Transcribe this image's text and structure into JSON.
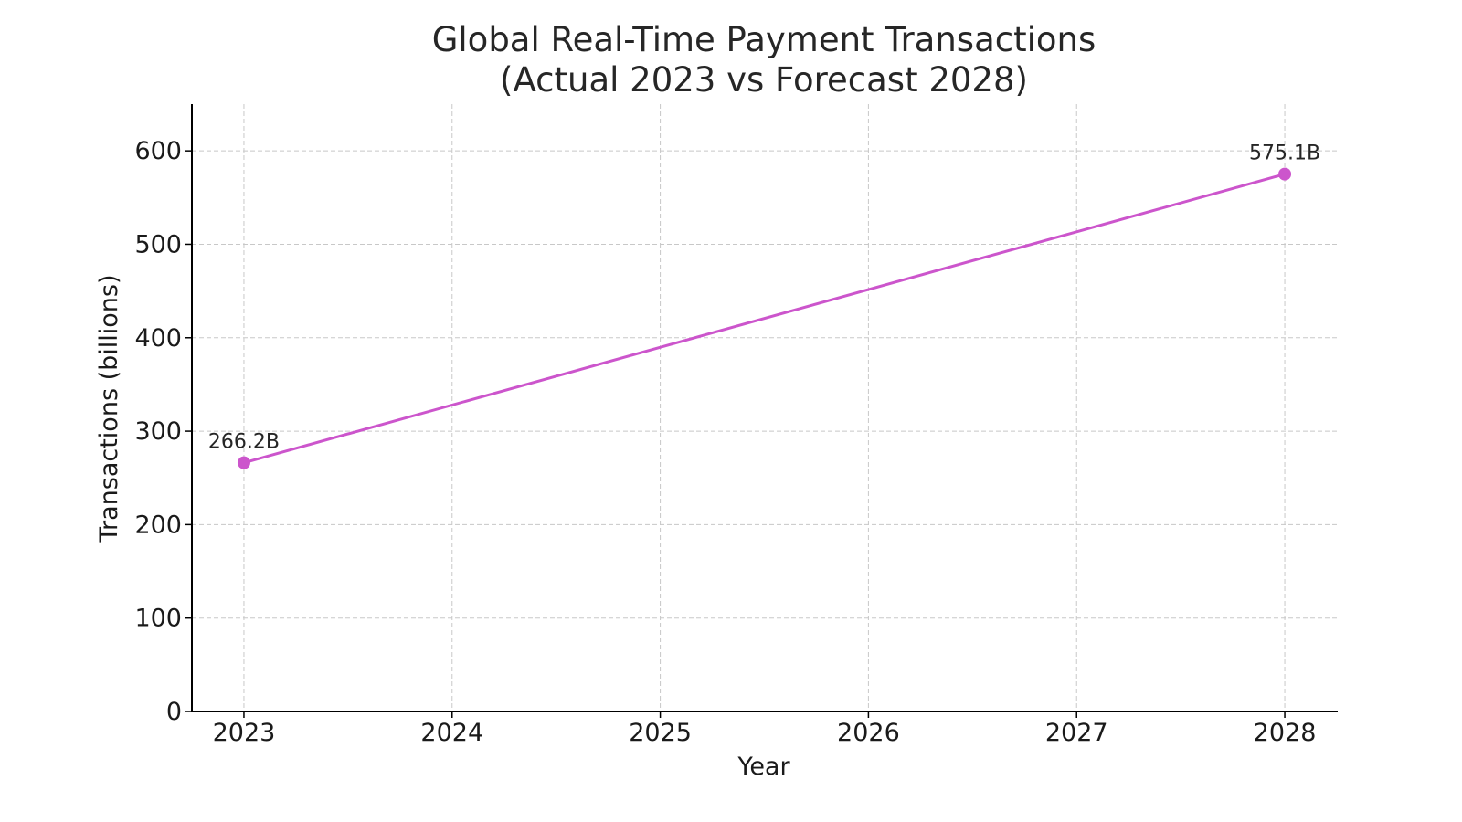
{
  "chart_data": {
    "type": "line",
    "title": "Global Real-Time Payment Transactions\n(Actual 2023 vs Forecast 2028)",
    "title_lines": [
      "Global Real-Time Payment Transactions",
      "(Actual 2023 vs Forecast 2028)"
    ],
    "xlabel": "Year",
    "ylabel": "Transactions (billions)",
    "x_ticks": [
      "2023",
      "2024",
      "2025",
      "2026",
      "2027",
      "2028"
    ],
    "y_ticks": [
      "0",
      "100",
      "200",
      "300",
      "400",
      "500",
      "600"
    ],
    "ylim": [
      0,
      650
    ],
    "xlim": [
      2022.75,
      2028.25
    ],
    "grid": true,
    "legend": null,
    "series": [
      {
        "name": "Transactions",
        "color": "#cc55cc",
        "x": [
          2023,
          2028
        ],
        "values": [
          266.2,
          575.1
        ],
        "labels": [
          "266.2B",
          "575.1B"
        ]
      }
    ]
  }
}
